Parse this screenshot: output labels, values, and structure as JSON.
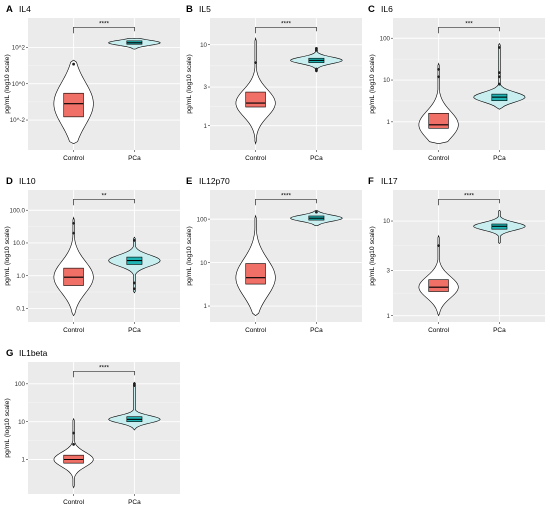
{
  "colors": {
    "panel_bg": "#ebebeb",
    "grid": "#ffffff",
    "control_fill": "#f07067",
    "control_violin": "#ffffff",
    "pca_fill": "#1fb5b5",
    "pca_violin": "#c9eef0",
    "outline": "#000000"
  },
  "chart_data": [
    {
      "type": "violin-box",
      "panel_letter": "A",
      "title": "IL4",
      "ylabel": "pg/mL (log10 scale)",
      "y_scale": "log10",
      "y_ticks": [
        {
          "value": 0.01,
          "label": "10^-2"
        },
        {
          "value": 1,
          "label": "10^0"
        },
        {
          "value": 100,
          "label": "10^2"
        }
      ],
      "categories": [
        "Control",
        "PCa"
      ],
      "significance": "****",
      "series": [
        {
          "category": "Control",
          "box": {
            "q1": 0.015,
            "median": 0.08,
            "q3": 0.3
          },
          "range": [
            0.0005,
            20
          ],
          "outliers": [
            12
          ]
        },
        {
          "category": "PCa",
          "box": {
            "q1": 150,
            "median": 180,
            "q3": 230
          },
          "range": [
            80,
            320
          ],
          "outliers": []
        }
      ]
    },
    {
      "type": "violin-box",
      "panel_letter": "B",
      "title": "IL5",
      "ylabel": "pg/mL (log10 scale)",
      "y_scale": "log10",
      "y_ticks": [
        {
          "value": 1,
          "label": "1"
        },
        {
          "value": 3,
          "label": "3"
        },
        {
          "value": 10,
          "label": "10"
        }
      ],
      "categories": [
        "Control",
        "PCa"
      ],
      "significance": "****",
      "series": [
        {
          "category": "Control",
          "box": {
            "q1": 1.7,
            "median": 1.9,
            "q3": 2.6
          },
          "range": [
            0.6,
            12
          ],
          "outliers": [
            6
          ]
        },
        {
          "category": "PCa",
          "box": {
            "q1": 6.0,
            "median": 6.4,
            "q3": 6.8
          },
          "range": [
            4.6,
            9.2
          ],
          "outliers": [
            4.8,
            5.0,
            8.5,
            9.0
          ]
        }
      ]
    },
    {
      "type": "violin-box",
      "panel_letter": "C",
      "title": "IL6",
      "ylabel": "pg/mL (log10 scale)",
      "y_scale": "log10",
      "y_ticks": [
        {
          "value": 1,
          "label": "1"
        },
        {
          "value": 10,
          "label": "10"
        },
        {
          "value": 100,
          "label": "100"
        }
      ],
      "categories": [
        "Control",
        "PCa"
      ],
      "significance": "***",
      "series": [
        {
          "category": "Control",
          "box": {
            "q1": 0.7,
            "median": 0.85,
            "q3": 1.6
          },
          "range": [
            0.3,
            25
          ],
          "outliers": [
            12,
            18
          ]
        },
        {
          "category": "PCa",
          "box": {
            "q1": 3.2,
            "median": 3.9,
            "q3": 4.6
          },
          "range": [
            2.0,
            75
          ],
          "outliers": [
            8,
            12,
            15,
            60
          ]
        }
      ]
    },
    {
      "type": "violin-box",
      "panel_letter": "D",
      "title": "IL10",
      "ylabel": "pg/mL (log10 scale)",
      "y_scale": "log10",
      "y_ticks": [
        {
          "value": 0.1,
          "label": "0.1"
        },
        {
          "value": 1,
          "label": "1.0"
        },
        {
          "value": 10,
          "label": "10.0"
        },
        {
          "value": 100,
          "label": "100.0"
        }
      ],
      "categories": [
        "Control",
        "PCa"
      ],
      "significance": "**",
      "series": [
        {
          "category": "Control",
          "box": {
            "q1": 0.5,
            "median": 0.9,
            "q3": 1.7
          },
          "range": [
            0.06,
            60
          ],
          "outliers": [
            20,
            40
          ]
        },
        {
          "category": "PCa",
          "box": {
            "q1": 2.2,
            "median": 2.9,
            "q3": 3.7
          },
          "range": [
            0.3,
            15
          ],
          "outliers": [
            0.4,
            0.6,
            12
          ]
        }
      ]
    },
    {
      "type": "violin-box",
      "panel_letter": "E",
      "title": "IL12p70",
      "ylabel": "pg/mL (log10 scale)",
      "y_scale": "log10",
      "y_ticks": [
        {
          "value": 1,
          "label": "1"
        },
        {
          "value": 10,
          "label": "10"
        },
        {
          "value": 100,
          "label": "100"
        }
      ],
      "categories": [
        "Control",
        "PCa"
      ],
      "significance": "****",
      "series": [
        {
          "category": "Control",
          "box": {
            "q1": 3.2,
            "median": 4.5,
            "q3": 9.5
          },
          "range": [
            0.6,
            120
          ],
          "outliers": []
        },
        {
          "category": "PCa",
          "box": {
            "q1": 95,
            "median": 105,
            "q3": 118
          },
          "range": [
            70,
            160
          ],
          "outliers": [
            145
          ]
        }
      ]
    },
    {
      "type": "violin-box",
      "panel_letter": "F",
      "title": "IL17",
      "ylabel": "pg/mL (log10 scale)",
      "y_scale": "log10",
      "y_ticks": [
        {
          "value": 1,
          "label": "1"
        },
        {
          "value": 3,
          "label": "3"
        },
        {
          "value": 10,
          "label": "10"
        }
      ],
      "categories": [
        "Control",
        "PCa"
      ],
      "significance": "****",
      "series": [
        {
          "category": "Control",
          "box": {
            "q1": 1.8,
            "median": 2.0,
            "q3": 2.4
          },
          "range": [
            1.0,
            7
          ],
          "outliers": [
            5.5
          ]
        },
        {
          "category": "PCa",
          "box": {
            "q1": 8.2,
            "median": 8.8,
            "q3": 9.3
          },
          "range": [
            5.8,
            13
          ],
          "outliers": []
        }
      ]
    },
    {
      "type": "violin-box",
      "panel_letter": "G",
      "title": "IL1beta",
      "ylabel": "pg/mL (log10 scale)",
      "y_scale": "log10",
      "y_ticks": [
        {
          "value": 1,
          "label": "1"
        },
        {
          "value": 10,
          "label": "10"
        },
        {
          "value": 100,
          "label": "100"
        }
      ],
      "categories": [
        "Control",
        "PCa"
      ],
      "significance": "****",
      "series": [
        {
          "category": "Control",
          "box": {
            "q1": 0.8,
            "median": 1.0,
            "q3": 1.3
          },
          "range": [
            0.18,
            12
          ],
          "outliers": [
            2.5,
            5
          ]
        },
        {
          "category": "PCa",
          "box": {
            "q1": 10,
            "median": 11.5,
            "q3": 13.5
          },
          "range": [
            6,
            110
          ],
          "outliers": [
            90,
            100
          ]
        }
      ]
    }
  ]
}
